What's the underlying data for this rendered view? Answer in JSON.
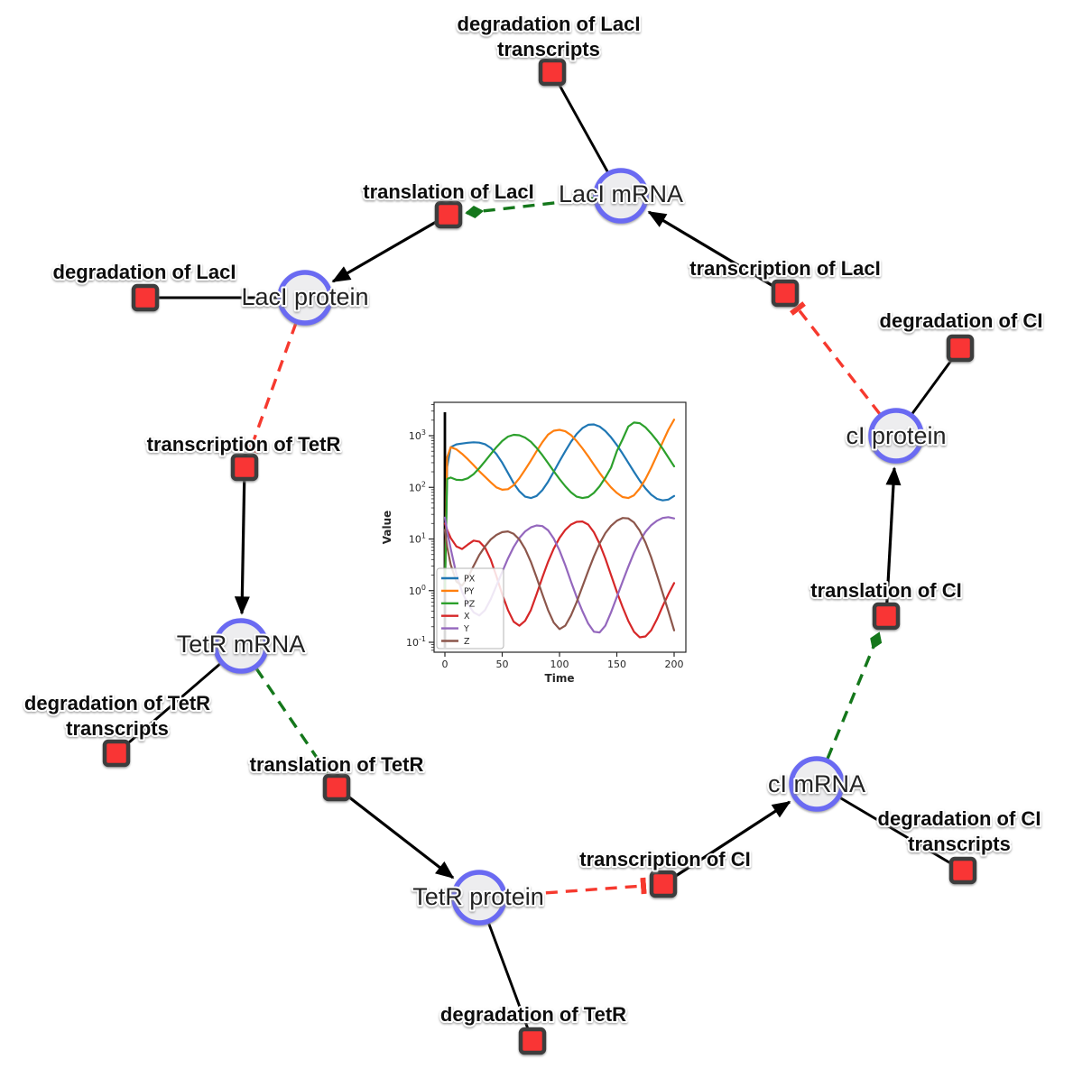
{
  "diagram": {
    "species": [
      {
        "id": "laci-mrna",
        "label": "LacI mRNA"
      },
      {
        "id": "laci-protein",
        "label": "LacI protein"
      },
      {
        "id": "tetr-mrna",
        "label": "TetR mRNA"
      },
      {
        "id": "tetr-protein",
        "label": "TetR protein"
      },
      {
        "id": "ci-mrna",
        "label": "cI mRNA"
      },
      {
        "id": "ci-protein",
        "label": "cI protein"
      }
    ],
    "reactions": [
      {
        "id": "degradation-laci-transcripts",
        "lines": [
          "degradation of LacI",
          "transcripts"
        ]
      },
      {
        "id": "translation-laci",
        "lines": [
          "translation of LacI"
        ]
      },
      {
        "id": "degradation-laci",
        "lines": [
          "degradation of LacI"
        ]
      },
      {
        "id": "transcription-laci",
        "lines": [
          "transcription of LacI"
        ]
      },
      {
        "id": "degradation-ci",
        "lines": [
          "degradation of CI"
        ]
      },
      {
        "id": "transcription-tetr",
        "lines": [
          "transcription of TetR"
        ]
      },
      {
        "id": "degradation-tetr-transcripts",
        "lines": [
          "degradation of TetR",
          "transcripts"
        ]
      },
      {
        "id": "translation-tetr",
        "lines": [
          "translation of TetR"
        ]
      },
      {
        "id": "degradation-tetr",
        "lines": [
          "degradation of TetR"
        ]
      },
      {
        "id": "transcription-ci",
        "lines": [
          "transcription of CI"
        ]
      },
      {
        "id": "degradation-ci-transcripts",
        "lines": [
          "degradation of CI",
          "transcripts"
        ]
      },
      {
        "id": "translation-ci",
        "lines": [
          "translation of CI"
        ]
      }
    ],
    "colors": {
      "species_fill": "#ededef",
      "species_stroke": "#6a6af2",
      "reaction_fill": "#f93434",
      "reaction_stroke": "#3d3d3d",
      "edge_black": "#000000",
      "activation_green": "#14771b",
      "inhibition_red": "#f6392e"
    }
  },
  "chart_data": {
    "type": "line",
    "title": "",
    "xlabel": "Time",
    "ylabel": "Value",
    "yscale": "log",
    "grid": false,
    "legend_position": "lower left",
    "x_ticks": [
      0,
      50,
      100,
      150,
      200
    ],
    "y_ticks_exp": [
      -1,
      0,
      1,
      2,
      3
    ],
    "xlim": [
      -9,
      210
    ],
    "ylim_log_exp": [
      -1.19,
      3.65
    ],
    "event_vline_x": 0,
    "x": [
      0,
      2,
      5,
      10,
      15,
      20,
      25,
      30,
      35,
      40,
      45,
      50,
      55,
      60,
      65,
      70,
      75,
      80,
      85,
      90,
      95,
      100,
      105,
      110,
      115,
      120,
      125,
      130,
      135,
      140,
      145,
      150,
      155,
      160,
      165,
      170,
      175,
      180,
      185,
      190,
      195,
      200
    ],
    "series": [
      {
        "name": "PX",
        "color": "#1f77b4",
        "values": [
          1,
          250,
          600,
          680,
          705,
          730,
          745,
          735,
          685,
          580,
          440,
          300,
          190,
          120,
          84,
          66,
          62,
          68,
          88,
          128,
          200,
          320,
          500,
          760,
          1080,
          1400,
          1630,
          1650,
          1500,
          1230,
          930,
          660,
          450,
          300,
          200,
          135,
          95,
          72,
          60,
          56,
          58,
          68
        ]
      },
      {
        "name": "PY",
        "color": "#ff7f0e",
        "values": [
          1,
          380,
          600,
          545,
          445,
          350,
          270,
          205,
          160,
          125,
          100,
          90,
          92,
          110,
          150,
          220,
          330,
          500,
          750,
          1050,
          1250,
          1300,
          1220,
          1030,
          790,
          570,
          400,
          275,
          190,
          135,
          100,
          78,
          65,
          62,
          70,
          95,
          145,
          240,
          420,
          750,
          1300,
          2050
        ]
      },
      {
        "name": "PZ",
        "color": "#2ca02c",
        "values": [
          1,
          145,
          155,
          140,
          138,
          150,
          180,
          235,
          320,
          440,
          600,
          790,
          960,
          1040,
          1020,
          920,
          760,
          580,
          420,
          295,
          205,
          145,
          105,
          80,
          66,
          62,
          65,
          78,
          105,
          155,
          240,
          500,
          850,
          1500,
          1800,
          1750,
          1450,
          1100,
          800,
          560,
          380,
          255
        ]
      },
      {
        "name": "X",
        "color": "#d62728",
        "values": [
          20,
          15,
          10.5,
          7.2,
          6.4,
          7.8,
          9.3,
          8.9,
          6.8,
          4.0,
          1.9,
          0.85,
          0.42,
          0.25,
          0.21,
          0.26,
          0.42,
          0.85,
          1.8,
          3.6,
          6.5,
          10.5,
          15,
          19,
          21.5,
          21.8,
          19,
          13.5,
          8,
          4.2,
          2.0,
          0.95,
          0.48,
          0.26,
          0.16,
          0.125,
          0.13,
          0.17,
          0.28,
          0.5,
          0.85,
          1.4
        ]
      },
      {
        "name": "Y",
        "color": "#9467bd",
        "values": [
          26,
          14,
          6.5,
          2.1,
          0.95,
          0.55,
          0.38,
          0.33,
          0.42,
          0.68,
          1.25,
          2.3,
          4.2,
          7,
          10.5,
          14,
          16.8,
          18.3,
          17.8,
          14.8,
          10.2,
          6.0,
          3.1,
          1.5,
          0.75,
          0.4,
          0.23,
          0.16,
          0.155,
          0.21,
          0.38,
          0.75,
          1.5,
          2.9,
          5.4,
          9.2,
          13.8,
          18.5,
          22.5,
          25.5,
          26.5,
          25
        ]
      },
      {
        "name": "Z",
        "color": "#8c564b",
        "values": [
          15,
          7,
          3.2,
          1.5,
          1.25,
          1.8,
          3.0,
          4.9,
          7.2,
          9.8,
          12,
          13.6,
          14,
          12.6,
          9.8,
          6.4,
          3.6,
          1.8,
          0.85,
          0.42,
          0.24,
          0.18,
          0.21,
          0.33,
          0.6,
          1.2,
          2.4,
          4.6,
          8.2,
          13,
          18,
          22.5,
          25.5,
          25,
          21,
          14.5,
          8.5,
          4.4,
          2.0,
          0.9,
          0.4,
          0.17
        ]
      }
    ]
  }
}
